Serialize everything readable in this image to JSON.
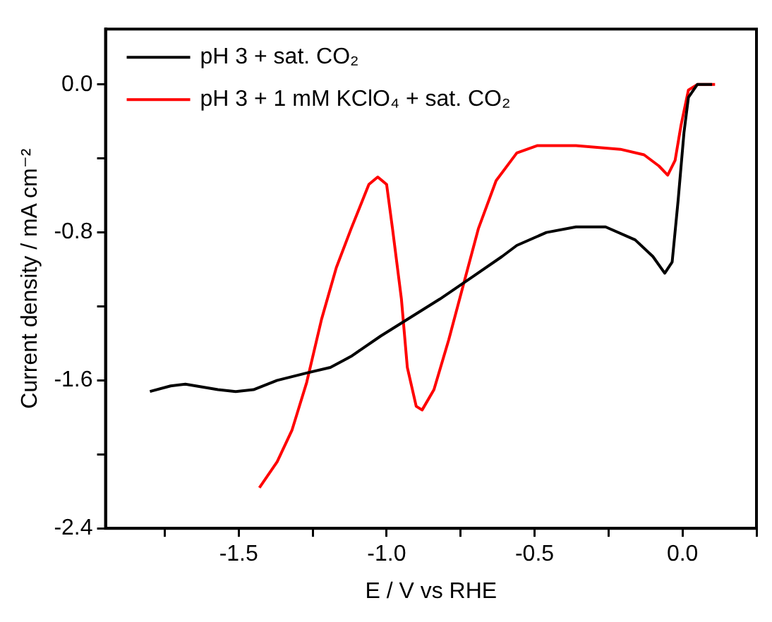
{
  "chart_data": {
    "type": "line",
    "xlabel": "E / V vs RHE",
    "ylabel": "Current density / mA cm⁻²",
    "xlim": [
      -1.95,
      0.25
    ],
    "ylim": [
      -2.4,
      0.3
    ],
    "xticks": [
      {
        "value": -1.75,
        "label": null
      },
      -1.5,
      {
        "value": -1.25,
        "label": null
      },
      {
        "value": -1.0,
        "label": "-1.0"
      },
      {
        "value": -0.75,
        "label": null
      },
      -0.5,
      {
        "value": -0.25,
        "label": null
      },
      {
        "value": 0.0,
        "label": "0.0"
      },
      {
        "value": 0.25,
        "label": null
      }
    ],
    "yticks": [
      -2.4,
      {
        "value": -2.0,
        "label": null
      },
      -1.6,
      {
        "value": -1.2,
        "label": null
      },
      -0.8,
      {
        "value": -0.4,
        "label": null
      },
      {
        "value": 0.0,
        "label": "0.0"
      }
    ],
    "grid": false,
    "legend": "top left",
    "marker": "none",
    "line_style": "solid",
    "series": [
      {
        "name": "pH 3 + sat. CO₂",
        "color": "#000000",
        "x": [
          -1.8,
          -1.73,
          -1.68,
          -1.57,
          -1.51,
          -1.45,
          -1.37,
          -1.27,
          -1.19,
          -1.12,
          -1.02,
          -0.92,
          -0.82,
          -0.71,
          -0.61,
          -0.56,
          -0.46,
          -0.36,
          -0.26,
          -0.16,
          -0.1,
          -0.06,
          -0.035,
          -0.015,
          0.005,
          0.02,
          0.05,
          0.1
        ],
        "values": [
          -1.66,
          -1.63,
          -1.62,
          -1.65,
          -1.66,
          -1.65,
          -1.6,
          -1.56,
          -1.53,
          -1.47,
          -1.36,
          -1.26,
          -1.16,
          -1.04,
          -0.93,
          -0.87,
          -0.8,
          -0.77,
          -0.77,
          -0.84,
          -0.93,
          -1.02,
          -0.96,
          -0.63,
          -0.26,
          -0.07,
          0.0,
          0.0
        ]
      },
      {
        "name": "pH 3 + 1 mM KClO₄ + sat. CO₂",
        "color": "#ff0000",
        "x": [
          -1.43,
          -1.37,
          -1.32,
          -1.27,
          -1.22,
          -1.17,
          -1.12,
          -1.06,
          -1.03,
          -1.0,
          -0.98,
          -0.95,
          -0.93,
          -0.9,
          -0.88,
          -0.84,
          -0.79,
          -0.74,
          -0.69,
          -0.63,
          -0.56,
          -0.49,
          -0.36,
          -0.21,
          -0.13,
          -0.08,
          -0.05,
          -0.025,
          -0.005,
          0.02,
          0.05,
          0.11
        ],
        "values": [
          -2.18,
          -2.04,
          -1.87,
          -1.61,
          -1.27,
          -0.99,
          -0.78,
          -0.54,
          -0.5,
          -0.54,
          -0.78,
          -1.16,
          -1.53,
          -1.74,
          -1.76,
          -1.65,
          -1.38,
          -1.08,
          -0.78,
          -0.52,
          -0.37,
          -0.33,
          -0.33,
          -0.35,
          -0.38,
          -0.44,
          -0.49,
          -0.41,
          -0.22,
          -0.03,
          0.0,
          0.0
        ]
      }
    ]
  }
}
